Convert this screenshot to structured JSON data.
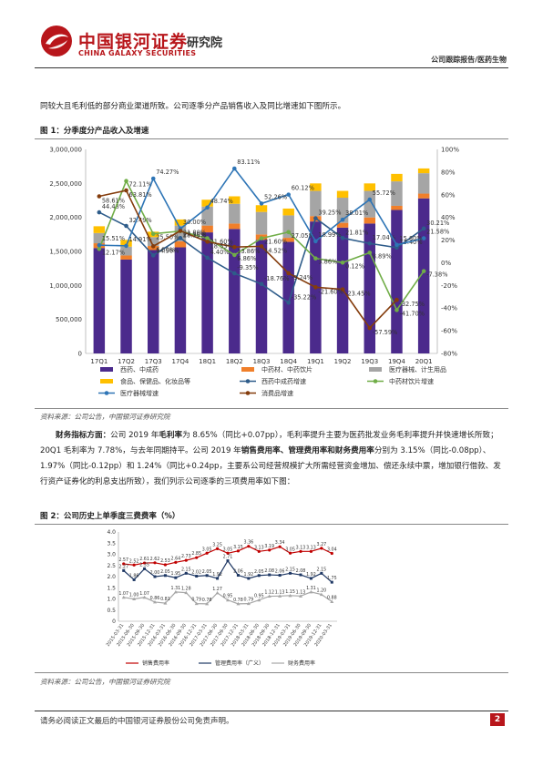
{
  "header": {
    "company_cn": "中国银河证券",
    "company_en": "CHINA GALAXY SECURITIES",
    "institute": "研究院",
    "report_tag": "公司跟踪报告/医药生物"
  },
  "intro_text": "同较大且毛利低的部分商业渠道所致。公司逐季分产品销售收入及同比增速如下图所示。",
  "figure1": {
    "caption": "图 1：分季度分产品收入及增速",
    "source": "资料来源：公司公告，中国银河证券研究院"
  },
  "paragraph": {
    "lead": "财务指标方面：",
    "text1": "公司 2019 年",
    "bold1": "毛利率",
    "text2": "为 8.65%（同比+0.07pp），毛利率提升主要为医药批发业务毛利率提升并快速增长所致；20Q1 毛利率为 7.78%，与去年同期持平。公司 2019 年",
    "bold2": "销售费用率、管理费用率和财务费用率",
    "text3": "分别为 3.15%（同比-0.08pp）、1.97%（同比-0.12pp）和 1.24%（同比+0.24pp，主要系公司经营规模扩大所需经营资金增加、偿还永续中票，增加银行借款、发行资产证券化的利息支出所致），我们列示公司逐季的三项费用率如下图："
  },
  "figure2": {
    "caption": "图 2：公司历史上单季度三费费率（%）",
    "source": "资料来源：公司公告，中国银河证券研究院"
  },
  "footer": {
    "disclaimer": "请务必阅读正文最后的中国银河证券股份公司免责声明。",
    "page": "2"
  },
  "colors": {
    "brand_red": "#b8161b",
    "bar_xiyao": "#4b2a8c",
    "bar_zhongyao": "#f07f2a",
    "bar_qixie": "#a5a5a5",
    "bar_shipin": "#ffc000",
    "line_xiyao": "#2e5c8a",
    "line_zhongyao": "#70ad47",
    "line_qixie": "#2e75b6",
    "line_shipin": "#843c0c"
  },
  "chart_data": [
    {
      "type": "bar",
      "stacked": true,
      "categories": [
        "17Q1",
        "17Q2",
        "17Q3",
        "17Q4",
        "18Q1",
        "18Q2",
        "18Q3",
        "18Q4",
        "19Q1",
        "19Q2",
        "19Q3",
        "19Q4",
        "20Q1"
      ],
      "ylim": [
        0,
        3000000
      ],
      "yticks": [
        "0",
        "500,000",
        "1,000,000",
        "1,500,000",
        "2,000,000",
        "2,500,000",
        "3,000,000"
      ],
      "y2lim": [
        -80,
        100
      ],
      "y2ticks": [
        "-80%",
        "-60%",
        "-40%",
        "-20%",
        "0%",
        "20%",
        "40%",
        "60%",
        "80%",
        "100%"
      ],
      "grid": false,
      "legend_position": "bottom",
      "series": [
        {
          "name": "西药、中成药",
          "kind": "bar",
          "values": [
            1550000,
            1380000,
            1520000,
            1560000,
            1780000,
            1830000,
            1670000,
            1640000,
            1940000,
            1850000,
            1910000,
            2110000,
            2280000
          ]
        },
        {
          "name": "中药材、中药饮片",
          "kind": "bar",
          "values": [
            70000,
            60000,
            60000,
            90000,
            100000,
            80000,
            80000,
            60000,
            80000,
            70000,
            90000,
            60000,
            70000
          ]
        },
        {
          "name": "医疗器械、计生用品",
          "kind": "bar",
          "values": [
            150000,
            130000,
            130000,
            230000,
            280000,
            290000,
            330000,
            330000,
            370000,
            370000,
            390000,
            360000,
            300000
          ]
        },
        {
          "name": "食品、保健品、化妆品等",
          "kind": "bar",
          "values": [
            100000,
            100000,
            80000,
            90000,
            100000,
            110000,
            100000,
            100000,
            110000,
            100000,
            110000,
            110000,
            70000
          ]
        },
        {
          "name": "西药中成药增速",
          "kind": "line",
          "values": [
            44.48,
            32.49,
            6.5,
            21.8,
            4.4,
            -9.35,
            -18.76,
            -35.22,
            39.25,
            21.81,
            17.04,
            13.4,
            30.21
          ]
        },
        {
          "name": "中药材饮片增速",
          "kind": "line",
          "values": [
            12.17,
            72.11,
            25.5,
            27.9,
            21.6,
            6.86,
            21.6,
            27.05,
            3.86,
            0.12,
            8.89,
            -41.7,
            -7.38
          ]
        },
        {
          "name": "医疗器械增速",
          "kind": "line",
          "values": [
            15.51,
            14.91,
            74.27,
            30.0,
            48.74,
            83.11,
            52.26,
            60.12,
            18.99,
            38.01,
            55.72,
            15.8,
            21.58
          ]
        },
        {
          "name": "消费品增速",
          "kind": "line",
          "values": [
            58.61,
            63.81,
            14.56,
            28.15,
            18.53,
            13.86,
            14.52,
            -9.24,
            -21.6,
            -23.45,
            -57.59,
            -32.75,
            null
          ]
        }
      ],
      "labels_shown": [
        "44.48%",
        "58.61%",
        "63.81%",
        "72.11%",
        "74.27%",
        "32.49%",
        "15.51%",
        "12.17%",
        "14.91%",
        "25.51%",
        "14.56%",
        "6.50%",
        "31.00%",
        "21.80%",
        "27.90%",
        "21.63%",
        "48.74%",
        "28.15%",
        "83.11%",
        "4.40%",
        "18.53%",
        "6.86%",
        "13.86%",
        "52.26%",
        "21.60%",
        "14.52%",
        "-9.35%",
        "-18.76%",
        "60.12%",
        "27.05%",
        "18.99%",
        "-35.22%",
        "39.25%",
        "3.86%",
        "-9.24%",
        "-21.60%",
        "38.01%",
        "17.04%",
        "0.12%",
        "55.72%",
        "13.40%",
        "8.89%",
        "-23.45%",
        "-41.70%",
        "-57.59%",
        "21.58%",
        "15.80%",
        "30.21%",
        "9.37%",
        "-7.38%",
        "-32.75%"
      ]
    },
    {
      "type": "line",
      "categories": [
        "2015-03-31",
        "2015-06-30",
        "2015-09-30",
        "2015-12-31",
        "2016-03-31",
        "2016-06-30",
        "2016-09-30",
        "2016-12-31",
        "2017-03-31",
        "2017-06-30",
        "2017-09-30",
        "2017-12-31",
        "2018-03-31",
        "2018-06-30",
        "2018-09-30",
        "2018-12-31",
        "2019-03-31",
        "2019-06-30",
        "2019-09-30",
        "2019-12-31",
        "2020-03-31"
      ],
      "ylim": [
        0,
        4.0
      ],
      "yticks": [
        "0",
        "0.5",
        "1.0",
        "1.5",
        "2.0",
        "2.5",
        "3.0",
        "3.5",
        "4.0"
      ],
      "legend_position": "bottom",
      "series": [
        {
          "name": "销售费用率",
          "values": [
            2.57,
            2.52,
            2.61,
            2.62,
            2.53,
            2.64,
            2.73,
            2.85,
            3.05,
            3.25,
            3.05,
            3.15,
            3.36,
            3.13,
            3.19,
            3.34,
            3.05,
            3.13,
            3.13,
            3.27,
            3.04
          ]
        },
        {
          "name": "管理费用率（广义）",
          "values": [
            2.27,
            1.86,
            2.35,
            2.0,
            2.05,
            1.95,
            2.15,
            2.02,
            2.05,
            1.92,
            2.71,
            2.06,
            1.92,
            2.05,
            2.08,
            2.06,
            2.15,
            2.08,
            1.92,
            2.15,
            1.75
          ]
        },
        {
          "name": "财务费用率",
          "values": [
            1.07,
            1.0,
            1.07,
            0.86,
            0.81,
            1.31,
            1.28,
            0.79,
            0.78,
            1.27,
            0.95,
            0.78,
            0.79,
            0.95,
            1.12,
            1.13,
            1.15,
            1.13,
            1.31,
            1.2,
            0.88
          ]
        }
      ],
      "labels_shown": [
        "2.57",
        "2.52",
        "2.61",
        "2.27",
        "2.35",
        "1.86",
        "2.00",
        "2.05",
        "2.53",
        "2.64",
        "2.73",
        "2.85",
        "1.95",
        "2.15",
        "2.02",
        "2.67",
        "2.71",
        "2.06",
        "3.05",
        "3.25",
        "3.36",
        "3.19",
        "3.34",
        "3.13",
        "3.05",
        "3.27",
        "3.04",
        "1.92",
        "2.08",
        "2.15",
        "1.75",
        "1.07",
        "0.86",
        "0.81",
        "1.31",
        "1.28",
        "0.79",
        "0.78",
        "1.27",
        "0.95",
        "1.12",
        "1.15",
        "1.13",
        "1.20",
        "1.31",
        "0.88"
      ]
    }
  ]
}
